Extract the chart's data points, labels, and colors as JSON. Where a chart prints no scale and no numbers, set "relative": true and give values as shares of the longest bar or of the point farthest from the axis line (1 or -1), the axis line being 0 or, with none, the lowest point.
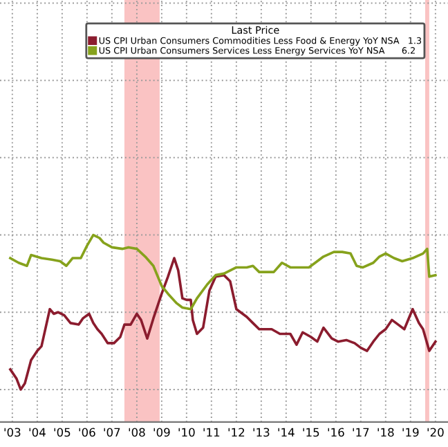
{
  "chart_data": {
    "type": "line",
    "relative": true,
    "legend_title": "Last Price",
    "legend": "top",
    "grid": true,
    "xlim": [
      "2003-01",
      "2021-01"
    ],
    "xticks": [
      {
        "value": "2003-07",
        "label": "'03"
      },
      {
        "value": "2004-07",
        "label": "'04"
      },
      {
        "value": "2005-07",
        "label": "'05"
      },
      {
        "value": "2006-07",
        "label": "'06"
      },
      {
        "value": "2007-07",
        "label": "'07"
      },
      {
        "value": "2008-07",
        "label": "'08"
      },
      {
        "value": "2009-07",
        "label": "'09"
      },
      {
        "value": "2010-07",
        "label": "'10"
      },
      {
        "value": "2011-07",
        "label": "'11"
      },
      {
        "value": "2012-07",
        "label": "'12"
      },
      {
        "value": "2013-07",
        "label": "'13"
      },
      {
        "value": "2014-07",
        "label": "'14"
      },
      {
        "value": "2015-07",
        "label": "'15"
      },
      {
        "value": "2016-07",
        "label": "'16"
      },
      {
        "value": "2017-07",
        "label": "'17"
      },
      {
        "value": "2018-07",
        "label": "'18"
      },
      {
        "value": "2019-07",
        "label": "'19"
      },
      {
        "value": "2020-07",
        "label": "'20"
      }
    ],
    "bands": [
      {
        "axis": "x",
        "from": "2008-01",
        "to": "2009-06",
        "color": "#f9b8b8"
      },
      {
        "axis": "x",
        "from": "2020-02",
        "to": "2020-04",
        "color": "#f9b8b8"
      }
    ],
    "series": [
      {
        "name": "US CPI Urban Consumers Commodities Less Food & Energy YoY NSA   1.3",
        "color": "#8b1c2e",
        "x": [
          "2003-06",
          "2003-09",
          "2003-11",
          "2004-01",
          "2004-04",
          "2004-07",
          "2004-09",
          "2004-11",
          "2005-01",
          "2005-03",
          "2005-05",
          "2005-08",
          "2005-11",
          "2006-03",
          "2006-05",
          "2006-08",
          "2006-10",
          "2006-12",
          "2007-02",
          "2007-05",
          "2007-08",
          "2007-11",
          "2008-01",
          "2008-04",
          "2008-07",
          "2008-09",
          "2008-12",
          "2009-03",
          "2009-07",
          "2009-10",
          "2010-01",
          "2010-03",
          "2010-05",
          "2010-07",
          "2010-09",
          "2010-10",
          "2010-12",
          "2011-03",
          "2011-06",
          "2011-09",
          "2012-01",
          "2012-04",
          "2012-07",
          "2012-12",
          "2013-03",
          "2013-06",
          "2013-09",
          "2013-12",
          "2014-04",
          "2014-09",
          "2014-12",
          "2015-03",
          "2015-07",
          "2015-10",
          "2016-01",
          "2016-05",
          "2016-08",
          "2016-12",
          "2017-04",
          "2017-07",
          "2017-10",
          "2018-01",
          "2018-04",
          "2018-07",
          "2018-10",
          "2019-01",
          "2019-04",
          "2019-08",
          "2019-11",
          "2020-01",
          "2020-04",
          "2020-07"
        ],
        "values": [
          0.13,
          0.07,
          0.0,
          0.04,
          0.19,
          0.25,
          0.28,
          0.4,
          0.52,
          0.49,
          0.5,
          0.48,
          0.43,
          0.42,
          0.46,
          0.49,
          0.43,
          0.39,
          0.36,
          0.3,
          0.3,
          0.34,
          0.42,
          0.42,
          0.49,
          0.45,
          0.33,
          0.46,
          0.62,
          0.73,
          0.85,
          0.77,
          0.59,
          0.58,
          0.58,
          0.45,
          0.36,
          0.4,
          0.64,
          0.73,
          0.74,
          0.7,
          0.52,
          0.47,
          0.43,
          0.39,
          0.39,
          0.39,
          0.36,
          0.36,
          0.29,
          0.37,
          0.34,
          0.31,
          0.4,
          0.33,
          0.31,
          0.32,
          0.3,
          0.27,
          0.25,
          0.31,
          0.36,
          0.39,
          0.45,
          0.42,
          0.39,
          0.52,
          0.43,
          0.39,
          0.25,
          0.31
        ]
      },
      {
        "name": "US CPI Urban Consumers Services Less Energy Services YoY NSA      6.2",
        "color": "#86a21c",
        "x": [
          "2003-06",
          "2003-10",
          "2004-02",
          "2004-04",
          "2004-09",
          "2005-02",
          "2005-06",
          "2005-09",
          "2005-12",
          "2006-04",
          "2006-07",
          "2006-10",
          "2007-01",
          "2007-03",
          "2007-07",
          "2007-12",
          "2008-03",
          "2008-07",
          "2008-11",
          "2009-03",
          "2009-07",
          "2009-10",
          "2010-02",
          "2010-05",
          "2010-09",
          "2010-12",
          "2011-05",
          "2011-09",
          "2012-01",
          "2012-04",
          "2012-07",
          "2012-12",
          "2013-03",
          "2013-06",
          "2013-09",
          "2014-01",
          "2014-05",
          "2014-09",
          "2015-01",
          "2015-06",
          "2015-09",
          "2016-01",
          "2016-06",
          "2016-10",
          "2017-02",
          "2017-05",
          "2017-08",
          "2018-01",
          "2018-04",
          "2018-07",
          "2018-11",
          "2019-03",
          "2019-08",
          "2020-01",
          "2020-03",
          "2020-04",
          "2020-07"
        ],
        "values": [
          0.85,
          0.82,
          0.8,
          0.87,
          0.85,
          0.84,
          0.83,
          0.8,
          0.85,
          0.85,
          0.93,
          1.0,
          0.98,
          0.95,
          0.92,
          0.91,
          0.92,
          0.91,
          0.86,
          0.8,
          0.67,
          0.62,
          0.56,
          0.53,
          0.52,
          0.59,
          0.68,
          0.74,
          0.75,
          0.77,
          0.79,
          0.79,
          0.8,
          0.76,
          0.76,
          0.76,
          0.82,
          0.79,
          0.79,
          0.79,
          0.82,
          0.86,
          0.89,
          0.89,
          0.88,
          0.8,
          0.79,
          0.82,
          0.86,
          0.88,
          0.85,
          0.83,
          0.85,
          0.88,
          0.91,
          0.73,
          0.74
        ]
      }
    ]
  }
}
